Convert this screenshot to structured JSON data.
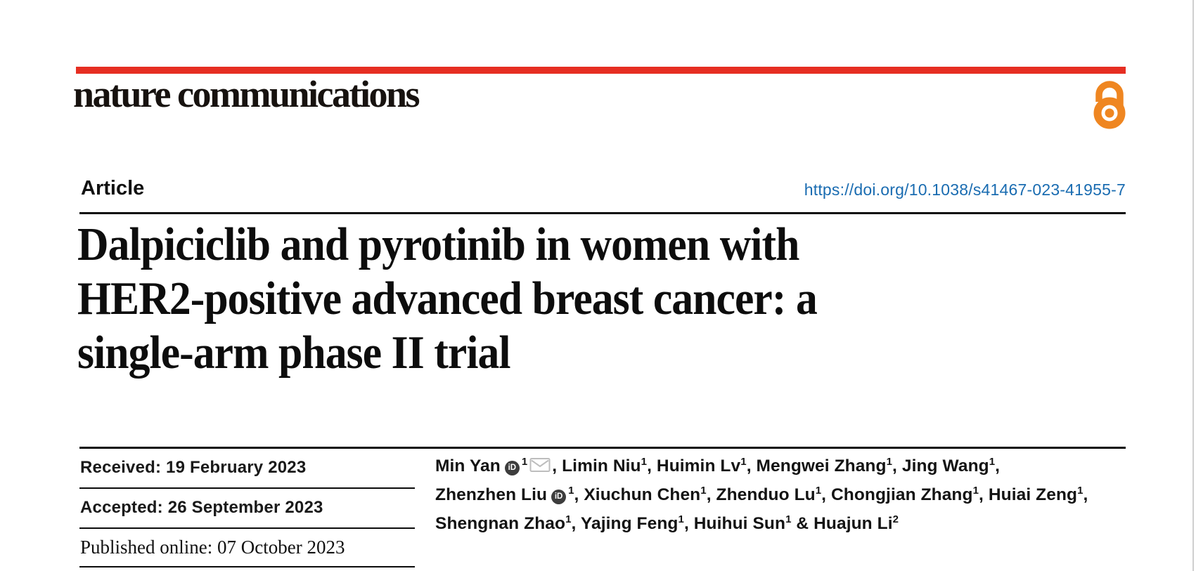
{
  "colors": {
    "brand_red": "#e62e22",
    "open_access_orange": "#ef8621",
    "link_blue": "#1a6cb1",
    "text_black": "#141414"
  },
  "masthead": {
    "journal_name": "nature communications",
    "open_access_icon": "open-access-padlock"
  },
  "article_header": {
    "article_type_label": "Article",
    "doi_link": "https://doi.org/10.1038/s41467-023-41955-7"
  },
  "title_lines": [
    "Dalpiciclib and pyrotinib in women with",
    "HER2-positive advanced breast cancer: a",
    "single-arm phase II trial"
  ],
  "dates": [
    {
      "label": "Received:",
      "value": "19 February 2023",
      "font": "sans"
    },
    {
      "label": "Accepted:",
      "value": "26 September 2023",
      "font": "sans"
    },
    {
      "label": "Published online:",
      "value": "07 October 2023",
      "font": "serif"
    }
  ],
  "authors": {
    "orcid_icon_text": "iD",
    "email_icon": "envelope",
    "list": [
      {
        "name": "Min Yan",
        "sup": "1",
        "orcid": true,
        "email": true,
        "sep": ", "
      },
      {
        "name": "Limin Niu",
        "sup": "1",
        "sep": ", "
      },
      {
        "name": "Huimin Lv",
        "sup": "1",
        "sep": ", "
      },
      {
        "name": "Mengwei Zhang",
        "sup": "1",
        "sep": ", "
      },
      {
        "name": "Jing Wang",
        "sup": "1",
        "sep": ",",
        "break_after": true
      },
      {
        "name": "Zhenzhen Liu",
        "sup": "1",
        "orcid": true,
        "sep": ", "
      },
      {
        "name": "Xiuchun Chen",
        "sup": "1",
        "sep": ", "
      },
      {
        "name": "Zhenduo Lu",
        "sup": "1",
        "sep": ", "
      },
      {
        "name": "Chongjian Zhang",
        "sup": "1",
        "sep": ", "
      },
      {
        "name": "Huiai Zeng",
        "sup": "1",
        "sep": ",",
        "break_after": true
      },
      {
        "name": "Shengnan Zhao",
        "sup": "1",
        "sep": ", "
      },
      {
        "name": "Yajing Feng",
        "sup": "1",
        "sep": ", "
      },
      {
        "name": "Huihui Sun",
        "sup": "1",
        "sep": " & "
      },
      {
        "name": "Huajun Li",
        "sup": "2",
        "sep": ""
      }
    ]
  }
}
